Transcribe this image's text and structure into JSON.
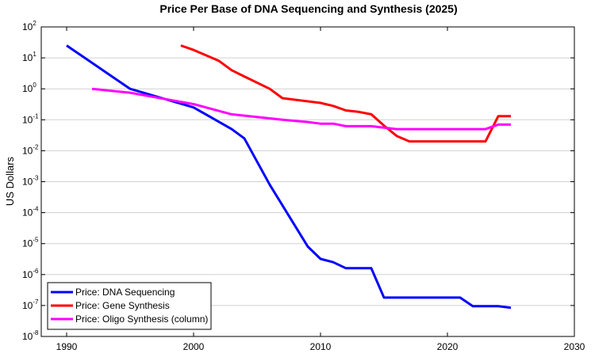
{
  "chart_data": {
    "type": "line",
    "title": "Price Per Base of DNA Sequencing and Synthesis (2025)",
    "xlabel": "",
    "ylabel": "US Dollars",
    "xlim": [
      1988,
      2030
    ],
    "ylim": [
      1e-08,
      100
    ],
    "yscale": "log",
    "grid": "horizontal",
    "legend_position": "bottom-left",
    "x_ticks": [
      1990,
      2000,
      2010,
      2020,
      2030
    ],
    "y_tick_labels": [
      {
        "exp": "2",
        "value": 100
      },
      {
        "exp": "1",
        "value": 10
      },
      {
        "exp": "0",
        "value": 1
      },
      {
        "exp": "-1",
        "value": 0.1
      },
      {
        "exp": "-2",
        "value": 0.01
      },
      {
        "exp": "-3",
        "value": 0.001
      },
      {
        "exp": "-4",
        "value": 0.0001
      },
      {
        "exp": "-5",
        "value": 1e-05
      },
      {
        "exp": "-6",
        "value": 1e-06
      },
      {
        "exp": "-7",
        "value": 1e-07
      },
      {
        "exp": "-8",
        "value": 1e-08
      }
    ],
    "series": [
      {
        "name": "Price: DNA Sequencing",
        "color": "#0000ff",
        "x": [
          1990,
          1995,
          2000,
          2003,
          2004,
          2006,
          2009,
          2010,
          2011,
          2012,
          2014,
          2015,
          2021,
          2022,
          2024,
          2025
        ],
        "y": [
          25,
          1.0,
          0.25,
          0.05,
          0.025,
          0.0008,
          8e-06,
          3.2e-06,
          2.5e-06,
          1.6e-06,
          1.6e-06,
          1.8e-07,
          1.8e-07,
          9.5e-08,
          9.5e-08,
          8.5e-08
        ]
      },
      {
        "name": "Price: Gene Synthesis",
        "color": "#ff0000",
        "x": [
          1999,
          2000,
          2001,
          2002,
          2003,
          2004,
          2006,
          2007,
          2010,
          2011,
          2012,
          2013,
          2014,
          2015,
          2016,
          2017,
          2023,
          2024,
          2025
        ],
        "y": [
          25,
          18,
          12,
          8,
          4,
          2.5,
          1.0,
          0.5,
          0.35,
          0.28,
          0.2,
          0.18,
          0.15,
          0.065,
          0.03,
          0.02,
          0.02,
          0.13,
          0.13
        ]
      },
      {
        "name": "Price: Oligo Synthesis (column)",
        "color": "#ff00ff",
        "x": [
          1992,
          1995,
          1998,
          2000,
          2003,
          2007,
          2009,
          2010,
          2011,
          2012,
          2014,
          2016,
          2023,
          2024,
          2025
        ],
        "y": [
          1.0,
          0.75,
          0.45,
          0.32,
          0.15,
          0.1,
          0.085,
          0.075,
          0.075,
          0.062,
          0.062,
          0.05,
          0.05,
          0.07,
          0.07
        ]
      }
    ]
  }
}
